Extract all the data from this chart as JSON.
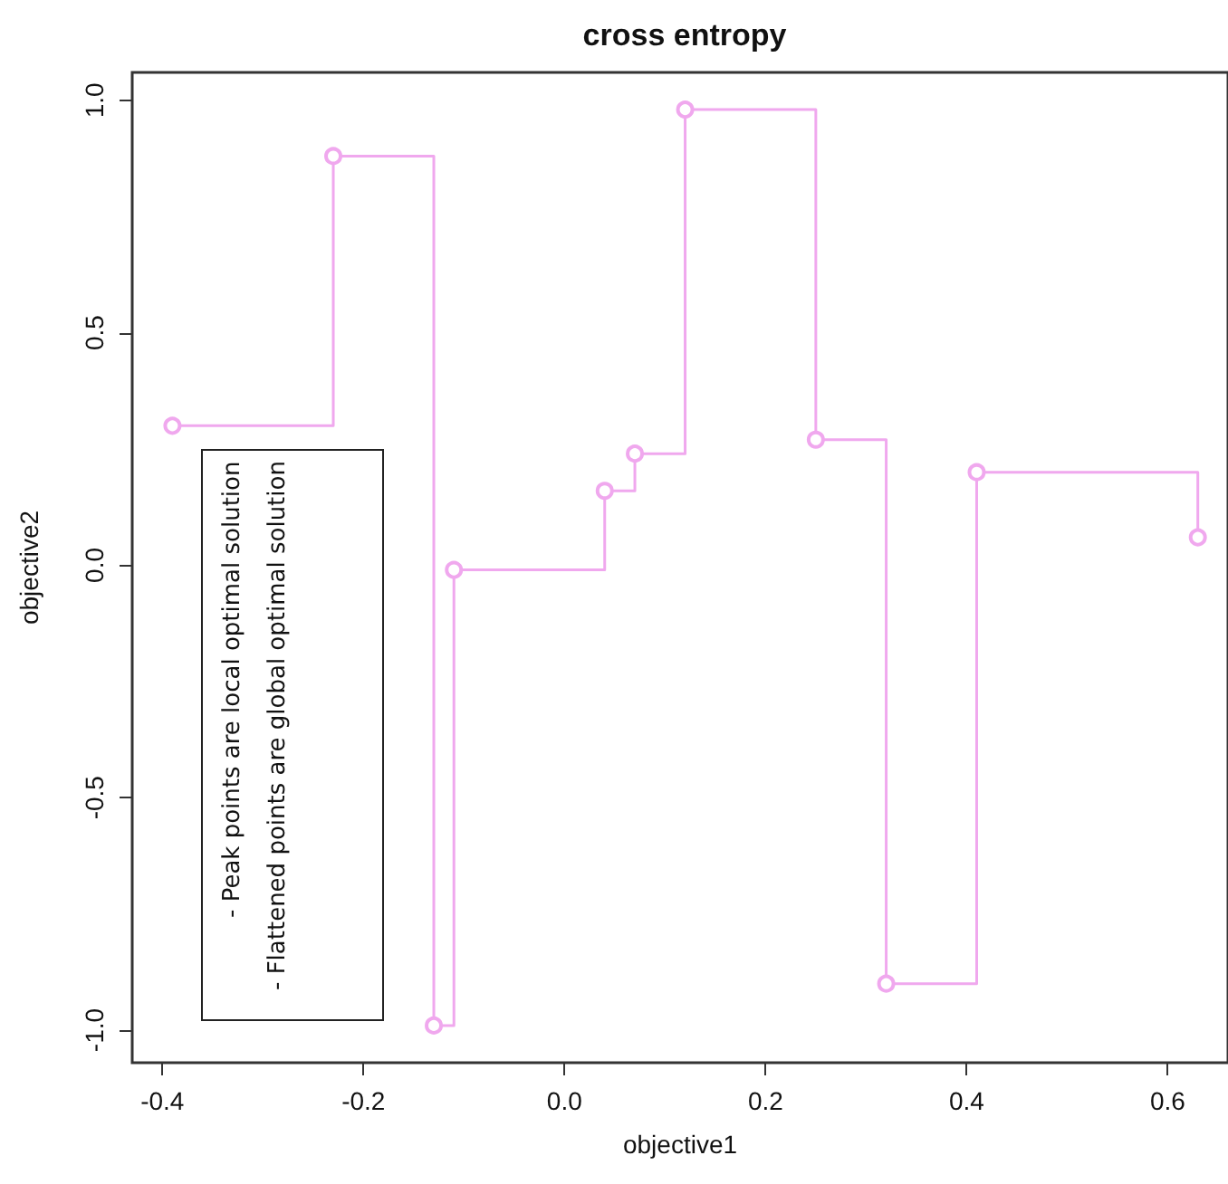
{
  "chart_data": {
    "type": "step",
    "title": "cross entropy",
    "xlabel": "objective1",
    "ylabel": "objective2",
    "annotations": [
      "- Peak points are local optimal solution",
      "- Flattened points are global optimal solution"
    ],
    "x": [
      -0.39,
      -0.23,
      -0.13,
      -0.11,
      0.04,
      0.07,
      0.12,
      0.25,
      0.32,
      0.41,
      0.63
    ],
    "series": [
      {
        "color": "#f0a8ee",
        "values": [
          0.3,
          0.88,
          -0.99,
          -0.01,
          0.16,
          0.24,
          0.98,
          0.27,
          -0.9,
          0.2,
          0.06
        ]
      }
    ],
    "xlim": [
      -0.43,
      0.66
    ],
    "ylim": [
      -1.07,
      1.06
    ],
    "xticks": [
      -0.4,
      -0.2,
      {
        "value": 0,
        "label": "0.0"
      },
      0.2,
      0.4,
      0.6
    ],
    "yticks": [
      {
        "value": -1,
        "label": "-1.0"
      },
      -0.5,
      {
        "value": 0,
        "label": "0.0"
      },
      0.5,
      {
        "value": 1,
        "label": "1.0"
      }
    ],
    "grid": false,
    "marker": "circle",
    "line_style": "solid"
  }
}
